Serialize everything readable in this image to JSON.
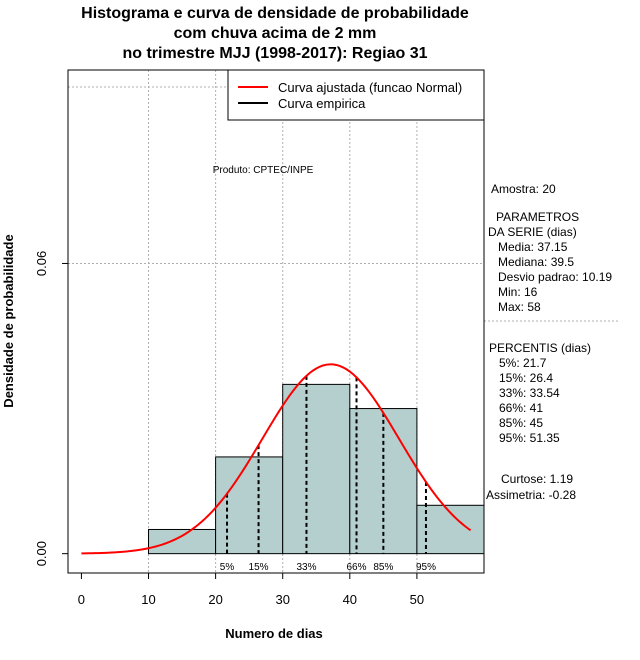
{
  "chart_data": {
    "type": "bar",
    "title_lines": [
      "Histograma e curva de densidade de probabilidade",
      "com chuva acima de 2 mm",
      "no trimestre MJJ (1998-2017): Regiao 31"
    ],
    "xlabel": "Numero de dias",
    "ylabel": "Densidade de probabilidade",
    "xlim": [
      -2,
      60
    ],
    "ylim": [
      -0.004,
      0.1
    ],
    "x_ticks": [
      0,
      10,
      20,
      30,
      40,
      50
    ],
    "y_ticks": [
      0.0,
      0.06
    ],
    "y_tick_labels": [
      "0.00",
      "0.06"
    ],
    "grid_x": [
      10,
      20,
      30,
      40,
      50
    ],
    "grid_y": [
      0.06
    ],
    "bins": [
      {
        "x0": 10,
        "x1": 20,
        "density": 0.005
      },
      {
        "x0": 20,
        "x1": 30,
        "density": 0.02
      },
      {
        "x0": 30,
        "x1": 40,
        "density": 0.035
      },
      {
        "x0": 40,
        "x1": 50,
        "density": 0.03
      },
      {
        "x0": 50,
        "x1": 60,
        "density": 0.01
      }
    ],
    "normal_curve": {
      "mean": 37.15,
      "sd": 10.19,
      "x_from": 0,
      "x_to": 58
    },
    "percentile_markers": [
      {
        "label": "5%",
        "x": 21.7
      },
      {
        "label": "15%",
        "x": 26.4
      },
      {
        "label": "33%",
        "x": 33.54
      },
      {
        "label": "66%",
        "x": 41
      },
      {
        "label": "85%",
        "x": 45
      },
      {
        "label": "95%",
        "x": 51.35
      }
    ],
    "legend": {
      "position": "top-right",
      "entries": [
        {
          "label": "Curva ajustada (funcao Normal)",
          "color": "#ff0000"
        },
        {
          "label": "Curva empirica",
          "color": "#000000"
        }
      ]
    },
    "annotation": "Produto: CPTEC/INPE",
    "colors": {
      "bar_fill": "#b5cfcf",
      "curve": "#ff0000",
      "grid": "#b0b0b0"
    }
  },
  "stats": {
    "amostra": "Amostra: 20",
    "parametros_title_1": "PARAMETROS",
    "parametros_title_2": "DA SERIE (dias)",
    "media": "Media: 37.15",
    "mediana": "Mediana: 39.5",
    "desvio": "Desvio padrao: 10.19",
    "min": "Min: 16",
    "max": "Max: 58",
    "percentis_title": "PERCENTIS (dias)",
    "p5": "5%: 21.7",
    "p15": "15%: 26.4",
    "p33": "33%: 33.54",
    "p66": "66%: 41",
    "p85": "85%: 45",
    "p95": "95%: 51.35",
    "curtose": "Curtose: 1.19",
    "assimetria": "Assimetria: -0.28"
  }
}
